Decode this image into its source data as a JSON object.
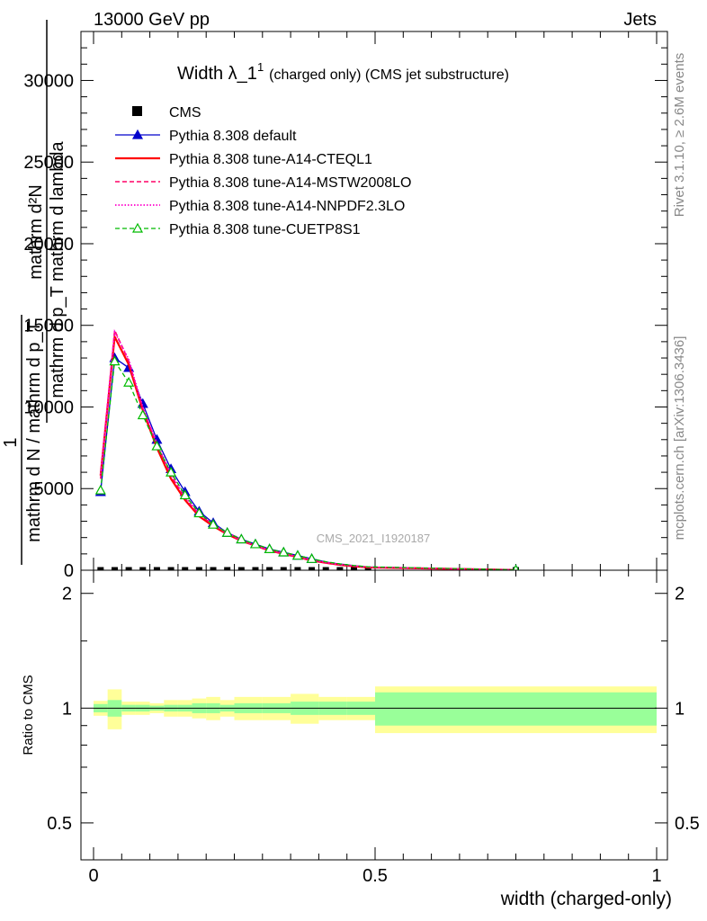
{
  "header": {
    "left": "13000 GeV pp",
    "right": "Jets"
  },
  "side": {
    "rivet": "Rivet 3.1.10, ≥ 2.6M events",
    "mcplots": "mcplots.cern.ch [arXiv:1306.3436]"
  },
  "watermark": "CMS_2021_I1920187",
  "chart_data": [
    {
      "type": "line",
      "title_main": "Width λ_1",
      "title_sup": "1",
      "title_rest": "(charged only) (CMS jet substructure)",
      "ylabel_top": "mathrm d²N",
      "ylabel_bottom": "mathrm d p_T mathrm d lambda",
      "ylabel_outer_top": "1",
      "ylabel_outer_bottom": "mathrm d N / mathrm d p_T",
      "xlim": [
        0,
        1
      ],
      "ylim": [
        0,
        33000
      ],
      "yticks": [
        0,
        5000,
        10000,
        15000,
        20000,
        25000,
        30000
      ],
      "ytick_labels": [
        "0",
        "5000",
        "10000",
        "15000",
        "20000",
        "25000",
        "30000"
      ],
      "x": [
        0.0125,
        0.0375,
        0.0625,
        0.0875,
        0.1125,
        0.1375,
        0.1625,
        0.1875,
        0.2125,
        0.2375,
        0.2625,
        0.2875,
        0.3125,
        0.3375,
        0.3625,
        0.3875,
        0.4125,
        0.4375,
        0.4625,
        0.4875,
        0.75
      ],
      "legend": [
        {
          "label": "CMS",
          "color": "#000000",
          "style": "square"
        },
        {
          "label": "Pythia 8.308 default",
          "color": "#0000cc",
          "style": "solid-triangle"
        },
        {
          "label": "Pythia 8.308 tune-A14-CTEQL1",
          "color": "#ff0000",
          "style": "solid-thick"
        },
        {
          "label": "Pythia 8.308 tune-A14-MSTW2008LO",
          "color": "#ff0066",
          "style": "dashed"
        },
        {
          "label": "Pythia 8.308 tune-A14-NNPDF2.3LO",
          "color": "#ff00cc",
          "style": "dotted"
        },
        {
          "label": "Pythia 8.308 tune-CUETP8S1",
          "color": "#00bb00",
          "style": "dashed-triangle"
        }
      ],
      "series": [
        {
          "name": "CMS",
          "values": [
            0.1,
            0.15,
            0.15,
            0.13,
            0.1,
            0.09,
            0.08,
            0.07,
            0.06,
            0.05,
            0.05,
            0.04,
            0.03,
            0.03,
            0.02,
            0.02,
            0.01,
            0.01,
            0.01,
            0.01,
            0.004
          ]
        },
        {
          "name": "Pythia 8.308 default",
          "values": [
            4800,
            13000,
            12400,
            10200,
            8000,
            6200,
            4800,
            3600,
            2900,
            2300,
            1900,
            1600,
            1300,
            1100,
            900,
            700,
            500,
            380,
            280,
            200,
            20
          ]
        },
        {
          "name": "Pythia 8.308 tune-A14-CTEQL1",
          "values": [
            5800,
            14300,
            12600,
            9800,
            7500,
            5600,
            4300,
            3300,
            2700,
            2200,
            1800,
            1500,
            1200,
            1000,
            800,
            600,
            450,
            330,
            240,
            170,
            15
          ]
        },
        {
          "name": "Pythia 8.308 tune-A14-MSTW2008LO",
          "values": [
            5600,
            14700,
            12800,
            9900,
            7700,
            5800,
            4400,
            3400,
            2800,
            2200,
            1800,
            1500,
            1200,
            1000,
            800,
            620,
            460,
            340,
            250,
            180,
            15
          ]
        },
        {
          "name": "Pythia 8.308 tune-A14-NNPDF2.3LO",
          "values": [
            5900,
            14600,
            12900,
            10000,
            7800,
            5900,
            4500,
            3500,
            2800,
            2300,
            1900,
            1500,
            1250,
            1050,
            820,
            640,
            470,
            350,
            260,
            190,
            16
          ]
        },
        {
          "name": "Pythia 8.308 tune-CUETP8S1",
          "values": [
            4900,
            12800,
            11500,
            9500,
            7600,
            6000,
            4600,
            3500,
            2800,
            2300,
            1900,
            1600,
            1300,
            1100,
            900,
            700,
            520,
            390,
            290,
            210,
            20
          ]
        }
      ]
    },
    {
      "type": "area",
      "ylabel": "Ratio to CMS",
      "xlabel": "width (charged-only)",
      "xlim": [
        0,
        1
      ],
      "ylim": [
        0.4,
        2.3
      ],
      "log_y": true,
      "yticks": [
        0.5,
        1,
        2
      ],
      "ytick_labels": [
        "0.5",
        "1",
        "2"
      ],
      "xticks": [
        0,
        0.5,
        1
      ],
      "xtick_labels": [
        "0",
        "0.5",
        "1"
      ],
      "bins": [
        {
          "x0": 0.0,
          "x1": 0.025,
          "stat": 0.025,
          "total": 0.045
        },
        {
          "x0": 0.025,
          "x1": 0.05,
          "stat": 0.05,
          "total": 0.12
        },
        {
          "x0": 0.05,
          "x1": 0.075,
          "stat": 0.02,
          "total": 0.04
        },
        {
          "x0": 0.075,
          "x1": 0.1,
          "stat": 0.02,
          "total": 0.04
        },
        {
          "x0": 0.1,
          "x1": 0.125,
          "stat": 0.015,
          "total": 0.03
        },
        {
          "x0": 0.125,
          "x1": 0.15,
          "stat": 0.02,
          "total": 0.05
        },
        {
          "x0": 0.15,
          "x1": 0.175,
          "stat": 0.02,
          "total": 0.05
        },
        {
          "x0": 0.175,
          "x1": 0.2,
          "stat": 0.03,
          "total": 0.06
        },
        {
          "x0": 0.2,
          "x1": 0.225,
          "stat": 0.03,
          "total": 0.07
        },
        {
          "x0": 0.225,
          "x1": 0.25,
          "stat": 0.02,
          "total": 0.05
        },
        {
          "x0": 0.25,
          "x1": 0.3,
          "stat": 0.03,
          "total": 0.07
        },
        {
          "x0": 0.3,
          "x1": 0.35,
          "stat": 0.03,
          "total": 0.07
        },
        {
          "x0": 0.35,
          "x1": 0.4,
          "stat": 0.04,
          "total": 0.09
        },
        {
          "x0": 0.4,
          "x1": 0.45,
          "stat": 0.04,
          "total": 0.07
        },
        {
          "x0": 0.45,
          "x1": 0.5,
          "stat": 0.04,
          "total": 0.07
        },
        {
          "x0": 0.5,
          "x1": 1.0,
          "stat": 0.1,
          "total": 0.14
        }
      ]
    }
  ]
}
